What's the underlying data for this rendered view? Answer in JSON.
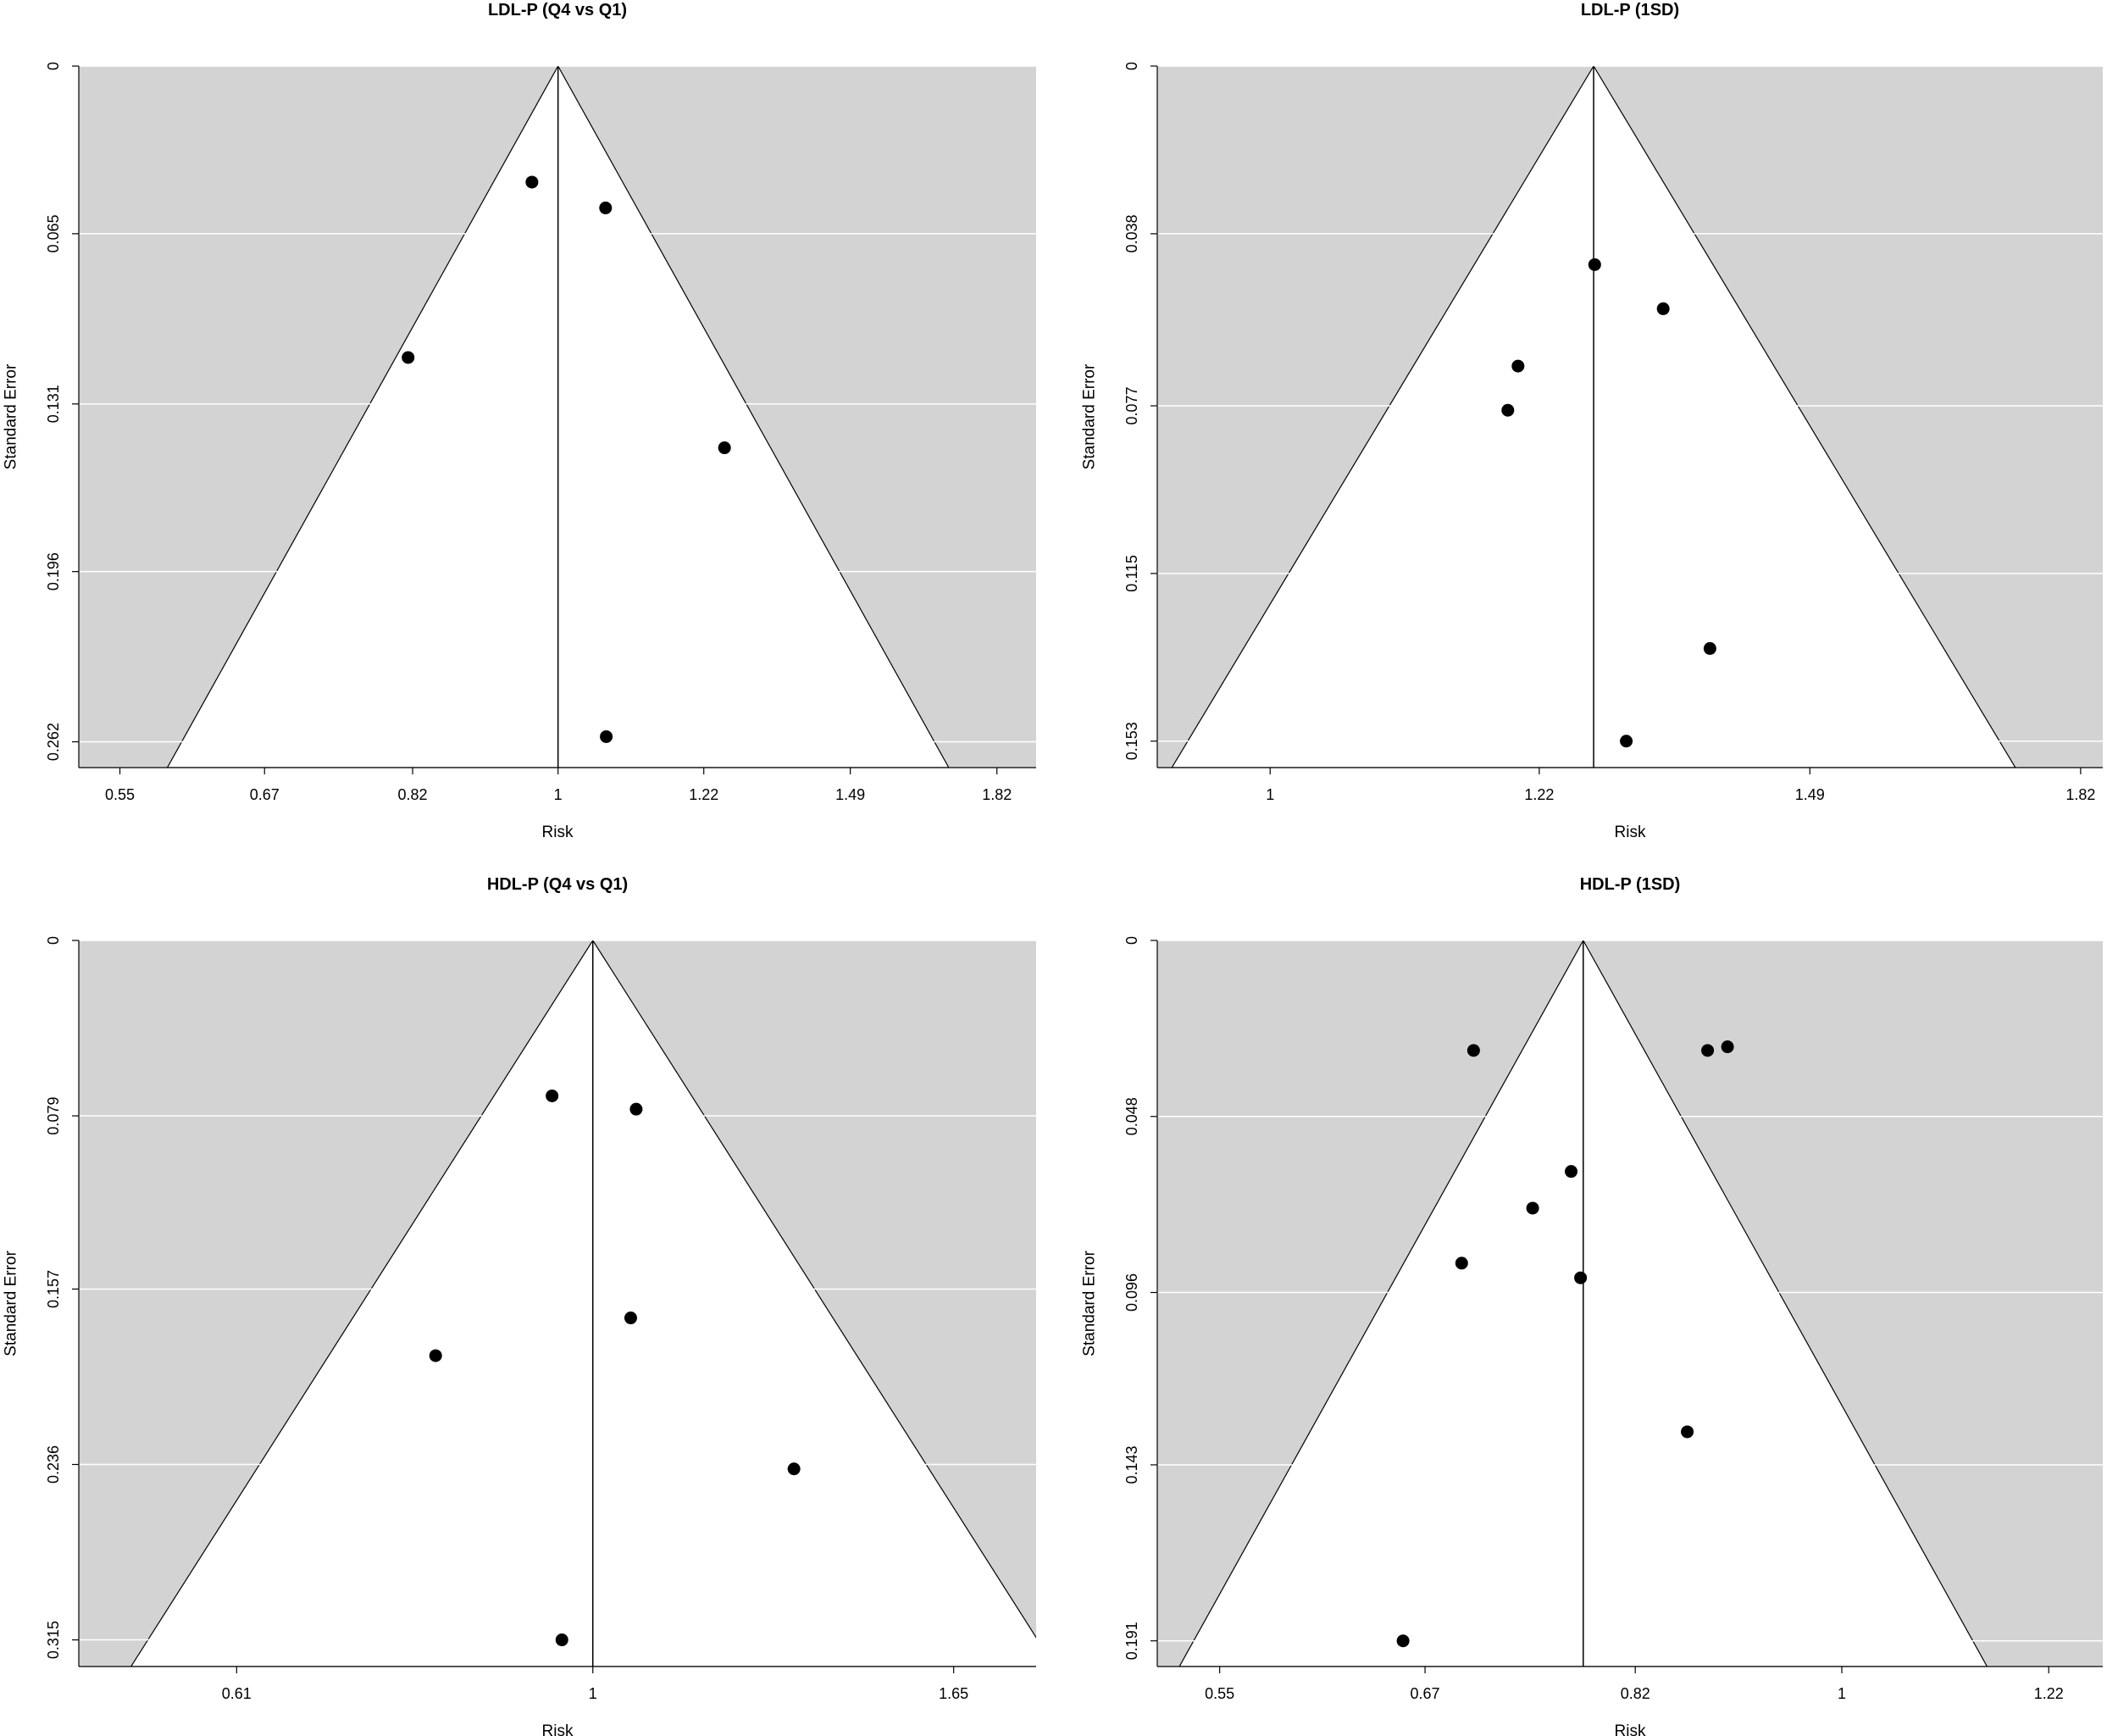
{
  "chart_data": [
    {
      "type": "scatter",
      "title": "LDL-P (Q4 vs Q1)",
      "xlabel": "Risk",
      "ylabel": "Standard Error",
      "x_scale": "log",
      "xlim": [
        0.52,
        1.92
      ],
      "x_ticks": [
        0.55,
        0.67,
        0.82,
        1,
        1.22,
        1.49,
        1.82
      ],
      "x_tick_labels": [
        "0.55",
        "0.67",
        "0.82",
        "1",
        "1.22",
        "1.49",
        "1.82"
      ],
      "ylim": [
        0,
        0.272
      ],
      "y_reversed": true,
      "y_ticks": [
        0,
        0.065,
        0.131,
        0.196,
        0.262
      ],
      "y_tick_labels": [
        "0",
        "0.065",
        "0.131",
        "0.196",
        "0.262"
      ],
      "center": 1,
      "funnel_se_max": 0.262,
      "grid": "horizontal",
      "points": [
        {
          "x": 0.965,
          "y": 0.045
        },
        {
          "x": 1.067,
          "y": 0.055
        },
        {
          "x": 0.815,
          "y": 0.113
        },
        {
          "x": 1.255,
          "y": 0.148
        },
        {
          "x": 1.068,
          "y": 0.26
        }
      ]
    },
    {
      "type": "scatter",
      "title": "LDL-P (1SD)",
      "xlabel": "Risk",
      "ylabel": "Standard Error",
      "x_scale": "log",
      "xlim": [
        0.92,
        1.85
      ],
      "x_ticks": [
        1,
        1.22,
        1.49,
        1.82
      ],
      "x_tick_labels": [
        "1",
        "1.22",
        "1.49",
        "1.82"
      ],
      "ylim": [
        0,
        0.159
      ],
      "y_reversed": true,
      "y_ticks": [
        0,
        0.038,
        0.077,
        0.115,
        0.153
      ],
      "y_tick_labels": [
        "0",
        "0.038",
        "0.077",
        "0.115",
        "0.153"
      ],
      "center": 1.27,
      "funnel_se_max": 0.153,
      "grid": "horizontal",
      "points": [
        {
          "x": 1.271,
          "y": 0.045
        },
        {
          "x": 1.337,
          "y": 0.055
        },
        {
          "x": 1.201,
          "y": 0.068
        },
        {
          "x": 1.192,
          "y": 0.078
        },
        {
          "x": 1.384,
          "y": 0.132
        },
        {
          "x": 1.301,
          "y": 0.153
        }
      ]
    },
    {
      "type": "scatter",
      "title": "HDL-P (Q4 vs Q1)",
      "xlabel": "Risk",
      "ylabel": "Standard Error",
      "x_scale": "log",
      "xlim": [
        0.49,
        1.85
      ],
      "x_ticks": [
        0.61,
        1,
        1.65
      ],
      "x_tick_labels": [
        "0.61",
        "1",
        "1.65"
      ],
      "ylim": [
        0,
        0.327
      ],
      "y_reversed": true,
      "y_ticks": [
        0,
        0.079,
        0.157,
        0.236,
        0.315
      ],
      "y_tick_labels": [
        "0",
        "0.079",
        "0.157",
        "0.236",
        "0.315"
      ],
      "center": 1,
      "funnel_se_max": 0.315,
      "grid": "horizontal",
      "points": [
        {
          "x": 0.945,
          "y": 0.07
        },
        {
          "x": 1.062,
          "y": 0.076
        },
        {
          "x": 1.054,
          "y": 0.17
        },
        {
          "x": 0.804,
          "y": 0.187
        },
        {
          "x": 1.322,
          "y": 0.238
        },
        {
          "x": 0.958,
          "y": 0.315
        }
      ]
    },
    {
      "type": "scatter",
      "title": "HDL-P (1SD)",
      "xlabel": "Risk",
      "ylabel": "Standard Error",
      "x_scale": "log",
      "xlim": [
        0.518,
        1.285
      ],
      "x_ticks": [
        0.55,
        0.67,
        0.82,
        1,
        1.22
      ],
      "x_tick_labels": [
        "0.55",
        "0.67",
        "0.82",
        "1",
        "1.22"
      ],
      "ylim": [
        0,
        0.198
      ],
      "y_reversed": true,
      "y_ticks": [
        0,
        0.048,
        0.096,
        0.143,
        0.191
      ],
      "y_tick_labels": [
        "0",
        "0.048",
        "0.096",
        "0.143",
        "0.191"
      ],
      "center": 0.78,
      "funnel_se_max": 0.191,
      "grid": "horizontal",
      "points": [
        {
          "x": 0.702,
          "y": 0.03
        },
        {
          "x": 0.879,
          "y": 0.03
        },
        {
          "x": 0.896,
          "y": 0.029
        },
        {
          "x": 0.771,
          "y": 0.063
        },
        {
          "x": 0.743,
          "y": 0.073
        },
        {
          "x": 0.694,
          "y": 0.088
        },
        {
          "x": 0.778,
          "y": 0.092
        },
        {
          "x": 0.862,
          "y": 0.134
        },
        {
          "x": 0.656,
          "y": 0.191
        }
      ]
    }
  ]
}
